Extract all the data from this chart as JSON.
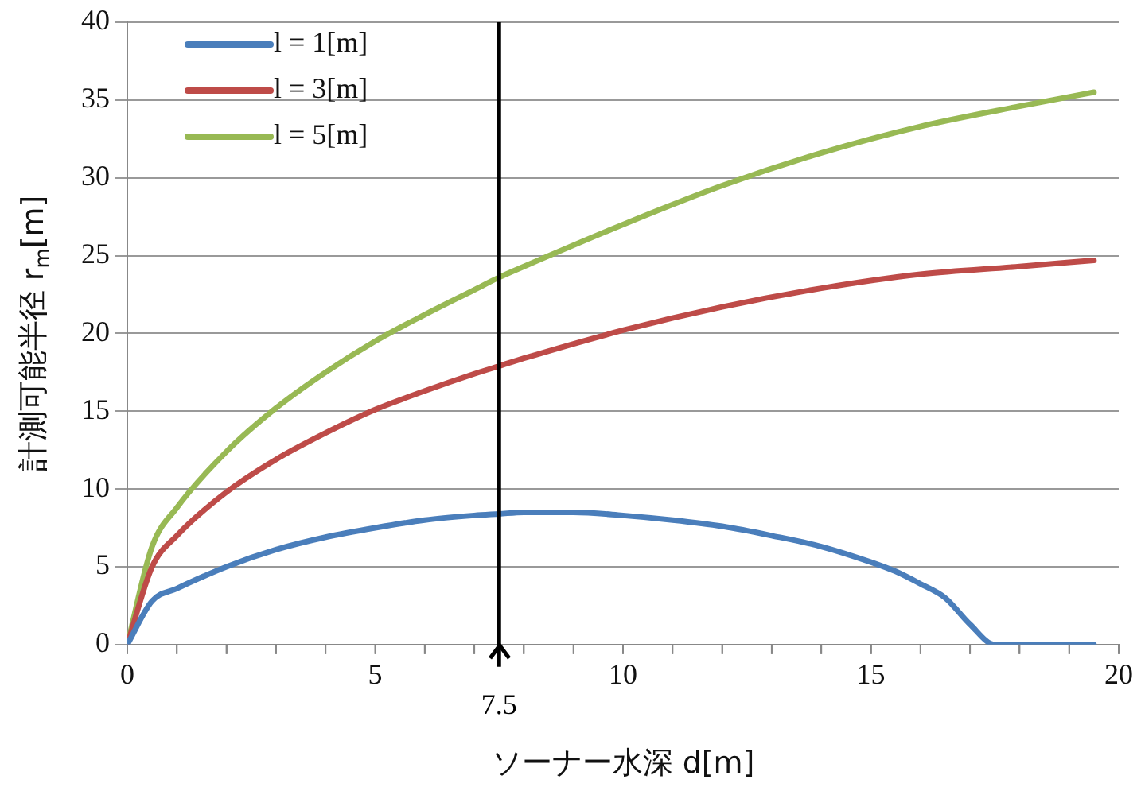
{
  "chart_data": {
    "type": "line",
    "xlabel": "ソーナー水深 d[m]",
    "ylabel": "計測可能半径 r$_{m}$[m]",
    "xlim": [
      0,
      20
    ],
    "xticks": [
      0,
      {
        "value": 1,
        "label": null
      },
      {
        "value": 2,
        "label": null
      },
      {
        "value": 3,
        "label": null
      },
      {
        "value": 4,
        "label": null
      },
      5,
      {
        "value": 6,
        "label": null
      },
      {
        "value": 7,
        "label": null
      },
      {
        "value": 8,
        "label": null
      },
      {
        "value": 9,
        "label": null
      },
      10,
      {
        "value": 11,
        "label": null
      },
      {
        "value": 12,
        "label": null
      },
      {
        "value": 13,
        "label": null
      },
      {
        "value": 14,
        "label": null
      },
      15,
      {
        "value": 16,
        "label": null
      },
      {
        "value": 17,
        "label": null
      },
      {
        "value": 18,
        "label": null
      },
      {
        "value": 19,
        "label": null
      },
      20
    ],
    "ylim": [
      0,
      40
    ],
    "yticks": [
      0,
      5,
      10,
      15,
      20,
      25,
      30,
      35,
      40
    ],
    "grid": "y",
    "legend": "top left",
    "marker": "none",
    "line_style": "solid",
    "ref_lines": [
      {
        "axis": "x",
        "value": 7.5,
        "label": "7.5",
        "color": "#000000"
      }
    ],
    "series": [
      {
        "name": "l = 1[m]",
        "color": "#4a7ebb",
        "x": [
          0,
          0.5,
          1,
          2,
          3,
          4,
          5,
          6,
          7,
          7.5,
          8,
          9,
          10,
          11,
          12,
          13,
          14,
          15,
          15.5,
          16,
          16.5,
          17,
          17.5,
          18,
          19,
          19.5
        ],
        "values": [
          0,
          2.8,
          3.6,
          5.0,
          6.1,
          6.9,
          7.5,
          8.0,
          8.3,
          8.4,
          8.5,
          8.5,
          8.3,
          8.0,
          7.6,
          7.0,
          6.3,
          5.3,
          4.7,
          3.9,
          3.0,
          1.3,
          0,
          0,
          0,
          0
        ]
      },
      {
        "name": "l = 3[m]",
        "color": "#be4b48",
        "x": [
          0,
          0.5,
          1,
          2,
          3,
          4,
          5,
          6,
          7,
          7.5,
          8,
          10,
          12,
          14,
          16,
          18,
          19.5
        ],
        "values": [
          0,
          5.0,
          7.0,
          9.8,
          11.9,
          13.6,
          15.1,
          16.3,
          17.4,
          17.9,
          18.4,
          20.2,
          21.7,
          22.9,
          23.8,
          24.3,
          24.7
        ]
      },
      {
        "name": "l = 5[m]",
        "color": "#98b954",
        "x": [
          0,
          0.5,
          1,
          2,
          3,
          4,
          5,
          6,
          7,
          7.5,
          8,
          10,
          12,
          14,
          16,
          18,
          19.5
        ],
        "values": [
          0,
          6.3,
          8.8,
          12.4,
          15.2,
          17.5,
          19.5,
          21.2,
          22.8,
          23.6,
          24.3,
          27.0,
          29.5,
          31.6,
          33.3,
          34.6,
          35.5
        ]
      }
    ]
  }
}
